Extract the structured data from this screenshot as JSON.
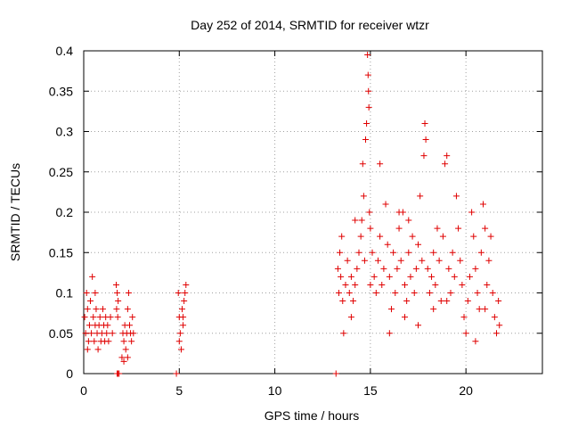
{
  "chart_data": {
    "type": "scatter",
    "title": "Day 252 of 2014, SRMTID for receiver wtzr",
    "xlabel": "GPS time / hours",
    "ylabel": "SRMTID / TECUs",
    "xlim": [
      0,
      24
    ],
    "ylim": [
      0,
      0.4
    ],
    "x_ticks": [
      0,
      5,
      10,
      15,
      20
    ],
    "x_tick_labels": [
      "0",
      "5",
      "10",
      "15",
      "20"
    ],
    "y_ticks": [
      0,
      0.05,
      0.1,
      0.15,
      0.2,
      0.25,
      0.3,
      0.35,
      0.4
    ],
    "y_tick_labels": [
      "0",
      "0.05",
      "0.1",
      "0.15",
      "0.2",
      "0.25",
      "0.3",
      "0.35",
      "0.4"
    ],
    "grid": true,
    "marker": "+",
    "color": "#e00000",
    "series": [
      {
        "name": "SRMTID",
        "points": [
          [
            0.05,
            0.07
          ],
          [
            0.1,
            0.05
          ],
          [
            0.15,
            0.1
          ],
          [
            0.2,
            0.08
          ],
          [
            0.25,
            0.04
          ],
          [
            0.3,
            0.06
          ],
          [
            0.35,
            0.09
          ],
          [
            0.4,
            0.05
          ],
          [
            0.45,
            0.12
          ],
          [
            0.5,
            0.07
          ],
          [
            0.55,
            0.04
          ],
          [
            0.6,
            0.06
          ],
          [
            0.65,
            0.08
          ],
          [
            0.7,
            0.05
          ],
          [
            0.75,
            0.03
          ],
          [
            0.8,
            0.06
          ],
          [
            0.85,
            0.07
          ],
          [
            0.9,
            0.04
          ],
          [
            0.95,
            0.05
          ],
          [
            1.0,
            0.08
          ],
          [
            1.05,
            0.06
          ],
          [
            1.1,
            0.04
          ],
          [
            1.15,
            0.07
          ],
          [
            1.2,
            0.05
          ],
          [
            1.25,
            0.06
          ],
          [
            1.3,
            0.04
          ],
          [
            1.4,
            0.07
          ],
          [
            1.5,
            0.05
          ],
          [
            0.2,
            0.03
          ],
          [
            0.6,
            0.1
          ],
          [
            1.7,
            0.11
          ],
          [
            1.72,
            0.08
          ],
          [
            1.75,
            0.1
          ],
          [
            1.78,
            0.07
          ],
          [
            1.8,
            0.09
          ],
          [
            2.0,
            0.02
          ],
          [
            2.05,
            0.05
          ],
          [
            2.1,
            0.04
          ],
          [
            2.15,
            0.06
          ],
          [
            2.2,
            0.03
          ],
          [
            2.25,
            0.05
          ],
          [
            2.3,
            0.08
          ],
          [
            2.35,
            0.1
          ],
          [
            2.4,
            0.06
          ],
          [
            2.45,
            0.05
          ],
          [
            2.5,
            0.04
          ],
          [
            2.55,
            0.07
          ],
          [
            2.6,
            0.05
          ],
          [
            2.1,
            0.015
          ],
          [
            2.3,
            0.02
          ],
          [
            4.95,
            0.1
          ],
          [
            5.0,
            0.07
          ],
          [
            5.05,
            0.05
          ],
          [
            5.1,
            0.03
          ],
          [
            5.15,
            0.08
          ],
          [
            5.2,
            0.06
          ],
          [
            5.25,
            0.09
          ],
          [
            5.3,
            0.1
          ],
          [
            5.35,
            0.11
          ],
          [
            5.0,
            0.04
          ],
          [
            5.2,
            0.07
          ],
          [
            13.3,
            0.13
          ],
          [
            13.35,
            0.1
          ],
          [
            13.4,
            0.15
          ],
          [
            13.45,
            0.12
          ],
          [
            13.5,
            0.17
          ],
          [
            13.55,
            0.09
          ],
          [
            13.6,
            0.05
          ],
          [
            13.7,
            0.11
          ],
          [
            13.8,
            0.14
          ],
          [
            13.9,
            0.1
          ],
          [
            14.0,
            0.12
          ],
          [
            14.1,
            0.09
          ],
          [
            14.2,
            0.11
          ],
          [
            14.3,
            0.13
          ],
          [
            14.4,
            0.15
          ],
          [
            14.5,
            0.17
          ],
          [
            14.55,
            0.19
          ],
          [
            14.6,
            0.26
          ],
          [
            14.65,
            0.22
          ],
          [
            14.7,
            0.14
          ],
          [
            14.75,
            0.29
          ],
          [
            14.8,
            0.31
          ],
          [
            14.85,
            0.395
          ],
          [
            14.88,
            0.37
          ],
          [
            14.9,
            0.35
          ],
          [
            14.92,
            0.33
          ],
          [
            14.95,
            0.2
          ],
          [
            15.0,
            0.18
          ],
          [
            15.1,
            0.15
          ],
          [
            15.2,
            0.12
          ],
          [
            15.3,
            0.1
          ],
          [
            15.4,
            0.14
          ],
          [
            15.5,
            0.17
          ],
          [
            15.6,
            0.11
          ],
          [
            15.7,
            0.13
          ],
          [
            15.8,
            0.21
          ],
          [
            15.9,
            0.16
          ],
          [
            16.0,
            0.12
          ],
          [
            16.1,
            0.08
          ],
          [
            16.2,
            0.15
          ],
          [
            16.3,
            0.1
          ],
          [
            16.4,
            0.13
          ],
          [
            16.5,
            0.18
          ],
          [
            16.6,
            0.14
          ],
          [
            16.7,
            0.2
          ],
          [
            16.8,
            0.11
          ],
          [
            16.9,
            0.09
          ],
          [
            17.0,
            0.15
          ],
          [
            17.1,
            0.12
          ],
          [
            17.2,
            0.17
          ],
          [
            17.3,
            0.1
          ],
          [
            17.4,
            0.13
          ],
          [
            17.5,
            0.16
          ],
          [
            17.6,
            0.22
          ],
          [
            17.7,
            0.14
          ],
          [
            17.8,
            0.27
          ],
          [
            17.85,
            0.31
          ],
          [
            17.9,
            0.29
          ],
          [
            18.0,
            0.13
          ],
          [
            18.1,
            0.1
          ],
          [
            18.2,
            0.12
          ],
          [
            18.3,
            0.15
          ],
          [
            18.4,
            0.11
          ],
          [
            18.5,
            0.18
          ],
          [
            18.6,
            0.14
          ],
          [
            18.7,
            0.09
          ],
          [
            18.8,
            0.17
          ],
          [
            18.9,
            0.26
          ],
          [
            19.0,
            0.27
          ],
          [
            19.1,
            0.13
          ],
          [
            19.2,
            0.1
          ],
          [
            19.3,
            0.15
          ],
          [
            19.4,
            0.12
          ],
          [
            19.5,
            0.22
          ],
          [
            19.6,
            0.18
          ],
          [
            19.7,
            0.14
          ],
          [
            19.8,
            0.11
          ],
          [
            19.9,
            0.07
          ],
          [
            20.0,
            0.05
          ],
          [
            20.1,
            0.09
          ],
          [
            20.2,
            0.12
          ],
          [
            20.3,
            0.2
          ],
          [
            20.4,
            0.17
          ],
          [
            20.5,
            0.13
          ],
          [
            20.6,
            0.1
          ],
          [
            20.7,
            0.08
          ],
          [
            20.8,
            0.15
          ],
          [
            20.9,
            0.21
          ],
          [
            21.0,
            0.18
          ],
          [
            21.1,
            0.11
          ],
          [
            21.2,
            0.14
          ],
          [
            21.3,
            0.17
          ],
          [
            21.4,
            0.1
          ],
          [
            21.5,
            0.07
          ],
          [
            21.6,
            0.05
          ],
          [
            21.7,
            0.09
          ],
          [
            21.75,
            0.06
          ],
          [
            14.2,
            0.19
          ],
          [
            15.5,
            0.26
          ],
          [
            16.0,
            0.05
          ],
          [
            16.8,
            0.07
          ],
          [
            17.5,
            0.06
          ],
          [
            18.3,
            0.08
          ],
          [
            19.0,
            0.09
          ],
          [
            20.5,
            0.04
          ],
          [
            21.0,
            0.08
          ],
          [
            14.0,
            0.07
          ],
          [
            15.0,
            0.11
          ],
          [
            16.5,
            0.2
          ],
          [
            17.0,
            0.19
          ],
          [
            1.75,
            0.0
          ],
          [
            1.8,
            0.0
          ],
          [
            1.85,
            0.0
          ],
          [
            4.85,
            0.0
          ],
          [
            13.2,
            0.0
          ]
        ]
      }
    ]
  }
}
